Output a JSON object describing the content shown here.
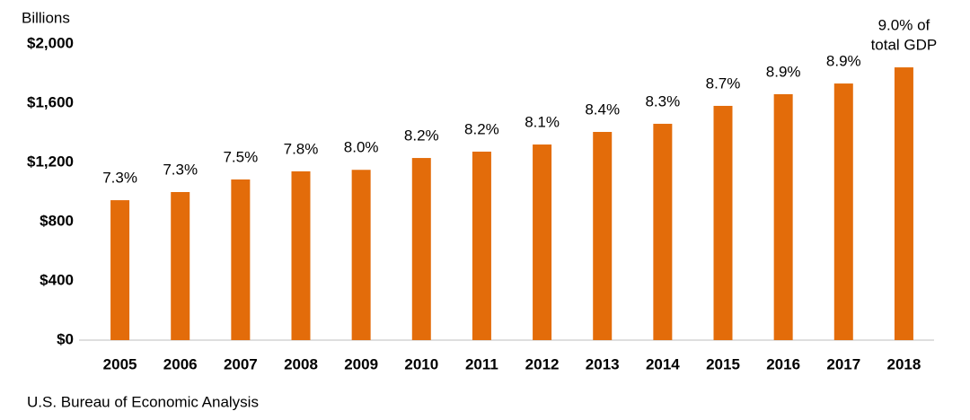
{
  "chart_data": {
    "type": "bar",
    "y_axis_label": "Billions",
    "categories": [
      "2005",
      "2006",
      "2007",
      "2008",
      "2009",
      "2010",
      "2011",
      "2012",
      "2013",
      "2014",
      "2015",
      "2016",
      "2017",
      "2018"
    ],
    "values": [
      945,
      1000,
      1085,
      1140,
      1150,
      1230,
      1273,
      1321,
      1406,
      1461,
      1582,
      1661,
      1733,
      1842
    ],
    "color": "#e36c0a",
    "gdp_share_labels": [
      [
        "7.3%"
      ],
      [
        "7.3%"
      ],
      [
        "7.5%"
      ],
      [
        "7.8%"
      ],
      [
        "8.0%"
      ],
      [
        "8.2%"
      ],
      [
        "8.2%"
      ],
      [
        "8.1%"
      ],
      [
        "8.4%"
      ],
      [
        "8.3%"
      ],
      [
        "8.7%"
      ],
      [
        "8.9%"
      ],
      [
        "8.9%"
      ],
      [
        "9.0% of",
        "total GDP"
      ]
    ],
    "gdp_share_color": "#2e86c1",
    "ylim": [
      0,
      2000
    ],
    "yticks": [
      {
        "value": 0,
        "label": "$0"
      },
      {
        "value": 400,
        "label": "$400"
      },
      {
        "value": 800,
        "label": "$800"
      },
      {
        "value": 1200,
        "label": "$1,200"
      },
      {
        "value": 1600,
        "label": "$1,600"
      },
      {
        "value": 2000,
        "label": "$2,000"
      }
    ],
    "grid": false,
    "source": "U.S. Bureau of Economic Analysis"
  }
}
